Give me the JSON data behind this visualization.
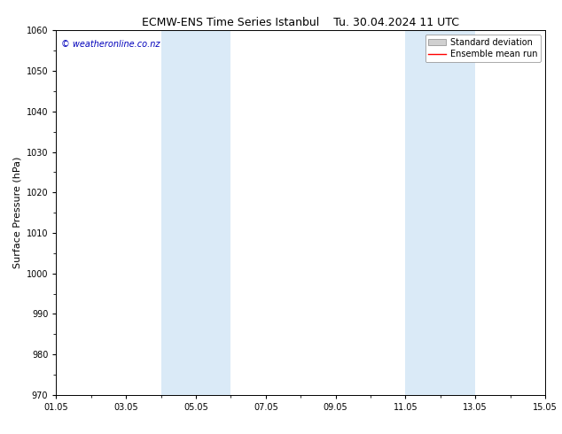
{
  "title": "ECMW-ENS Time Series Istanbul",
  "title_right": "Tu. 30.04.2024 11 UTC",
  "ylabel": "Surface Pressure (hPa)",
  "watermark": "© weatheronline.co.nz",
  "ylim": [
    970,
    1060
  ],
  "yticks": [
    970,
    980,
    990,
    1000,
    1010,
    1020,
    1030,
    1040,
    1050,
    1060
  ],
  "xtick_labels": [
    "01.05",
    "03.05",
    "05.05",
    "07.05",
    "09.05",
    "11.05",
    "13.05",
    "15.05"
  ],
  "xtick_positions": [
    0,
    2,
    4,
    6,
    8,
    10,
    12,
    14
  ],
  "xlim": [
    0,
    14
  ],
  "shaded_regions": [
    {
      "x_start": 3.0,
      "x_end": 5.0,
      "color": "#daeaf7",
      "alpha": 1.0
    },
    {
      "x_start": 10.0,
      "x_end": 12.0,
      "color": "#daeaf7",
      "alpha": 1.0
    }
  ],
  "legend_std_dev_label": "Standard deviation",
  "legend_mean_run_label": "Ensemble mean run",
  "legend_std_color": "#d0d0d0",
  "legend_mean_color": "#ff0000",
  "watermark_color": "#0000bb",
  "title_fontsize": 9,
  "tick_fontsize": 7,
  "ylabel_fontsize": 8,
  "legend_fontsize": 7,
  "background_color": "#ffffff",
  "plot_bg_color": "#ffffff",
  "border_color": "#000000"
}
